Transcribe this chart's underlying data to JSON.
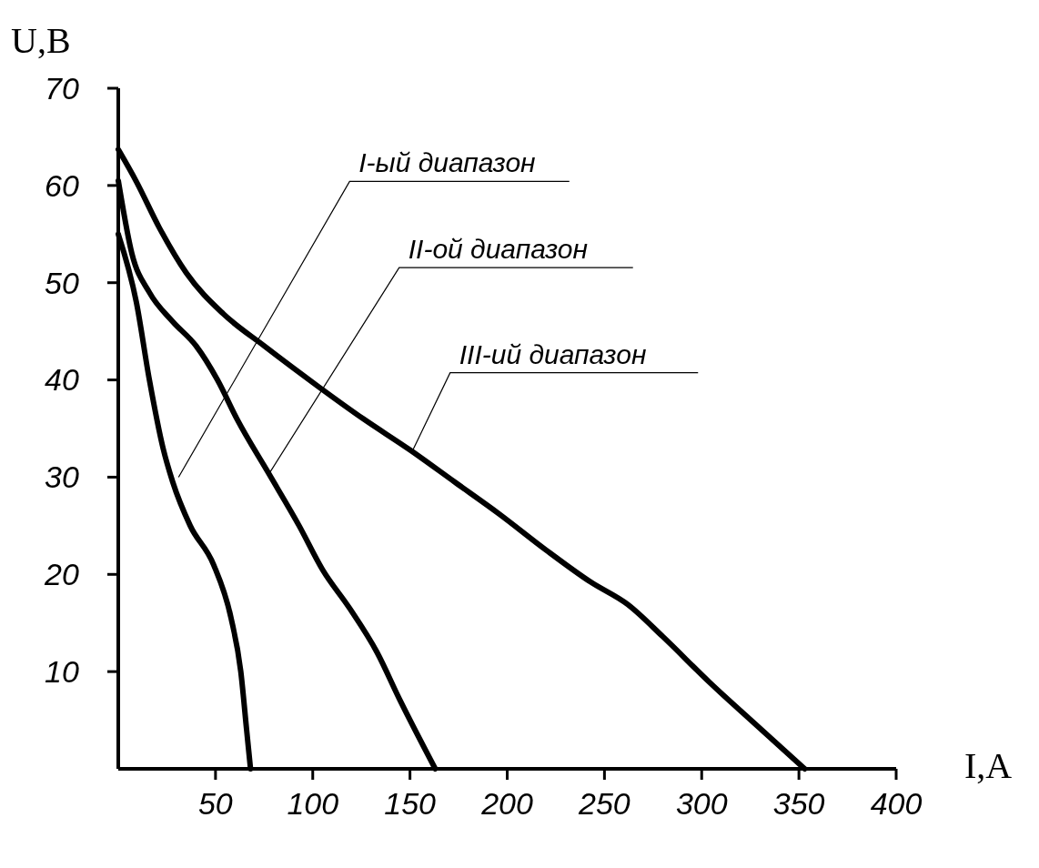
{
  "chart_data": {
    "type": "line",
    "xlabel": "I,A",
    "ylabel": "U,B",
    "xlim": [
      0,
      400
    ],
    "ylim": [
      0,
      70
    ],
    "xticks": [
      50,
      100,
      150,
      200,
      250,
      300,
      350,
      400
    ],
    "yticks": [
      10,
      20,
      30,
      40,
      50,
      60,
      70
    ],
    "grid": false,
    "marker": "none",
    "line_style": "solid",
    "series": [
      {
        "color": "#000000",
        "x": [
          0,
          9.3,
          16,
          23,
          28,
          37,
          49,
          58,
          63,
          66,
          68
        ],
        "values": [
          55,
          48,
          40,
          33,
          29.5,
          25,
          21,
          15.5,
          10,
          4,
          0
        ]
      },
      {
        "color": "#000000",
        "x": [
          0,
          7,
          16,
          28,
          40,
          51,
          61,
          77,
          93,
          105,
          119,
          133,
          145,
          163
        ],
        "values": [
          60.5,
          53,
          49,
          46,
          43.5,
          40,
          36,
          30.5,
          25,
          20.5,
          16.5,
          12,
          7,
          0
        ]
      },
      {
        "color": "#000000",
        "x": [
          0,
          9.3,
          21,
          35,
          54,
          75,
          103,
          126,
          150,
          173,
          196,
          220,
          243,
          262,
          280,
          304,
          327,
          353
        ],
        "values": [
          63.7,
          60.4,
          55.7,
          51,
          46.8,
          43.5,
          39.3,
          36,
          32.8,
          29.5,
          26.2,
          22.5,
          19.2,
          16.9,
          13.6,
          8.9,
          4.7,
          0
        ]
      }
    ],
    "annotations": [
      {
        "text": "I-ый диапазон",
        "x": 31,
        "y": 30
      },
      {
        "text": "II-ой диапазон",
        "x": 78,
        "y": 30.5
      },
      {
        "text": "III-ий диапазон",
        "x": 151,
        "y": 32.6
      }
    ]
  }
}
